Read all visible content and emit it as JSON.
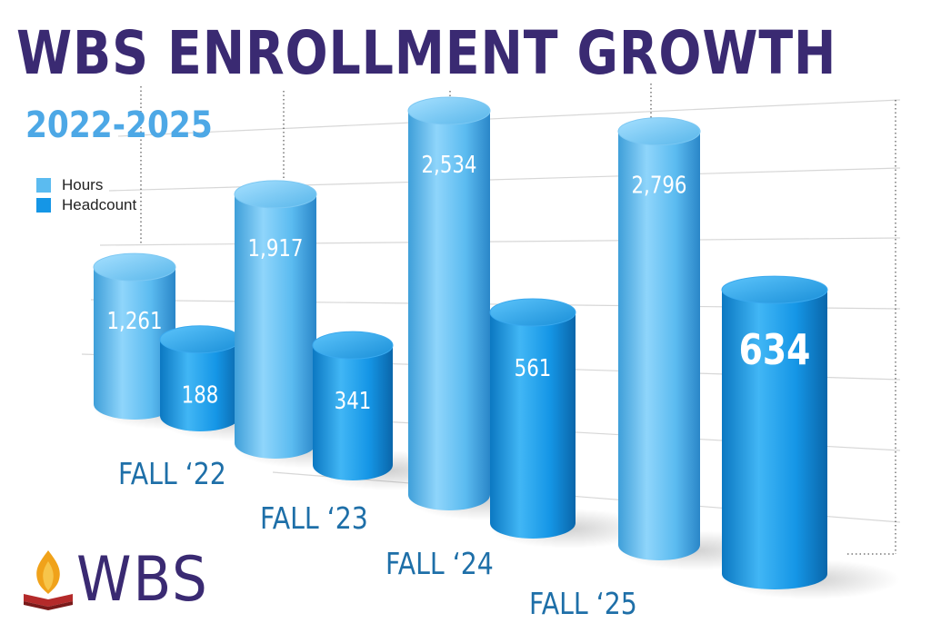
{
  "title": "WBS ENROLLMENT GROWTH",
  "subtitle": "2022-2025",
  "logo_text": "WBS",
  "colors": {
    "title": "#3a2a72",
    "subtitle": "#4da8e6",
    "hours": "#5bbbf0",
    "headcount": "#1596e6",
    "category_label": "#1e6fa8"
  },
  "chart_data": {
    "type": "bar",
    "categories": [
      "FALL ‘22",
      "FALL ‘23",
      "FALL ‘24",
      "FALL ‘25"
    ],
    "series": [
      {
        "name": "Hours",
        "values": [
          1261,
          1917,
          2534,
          2796
        ],
        "labels": [
          "1,261",
          "1,917",
          "2,534",
          "2,796"
        ]
      },
      {
        "name": "Headcount",
        "values": [
          188,
          341,
          561,
          634
        ],
        "labels": [
          "188",
          "341",
          "561",
          "634"
        ]
      }
    ],
    "legend": "top-left",
    "grid": true
  }
}
